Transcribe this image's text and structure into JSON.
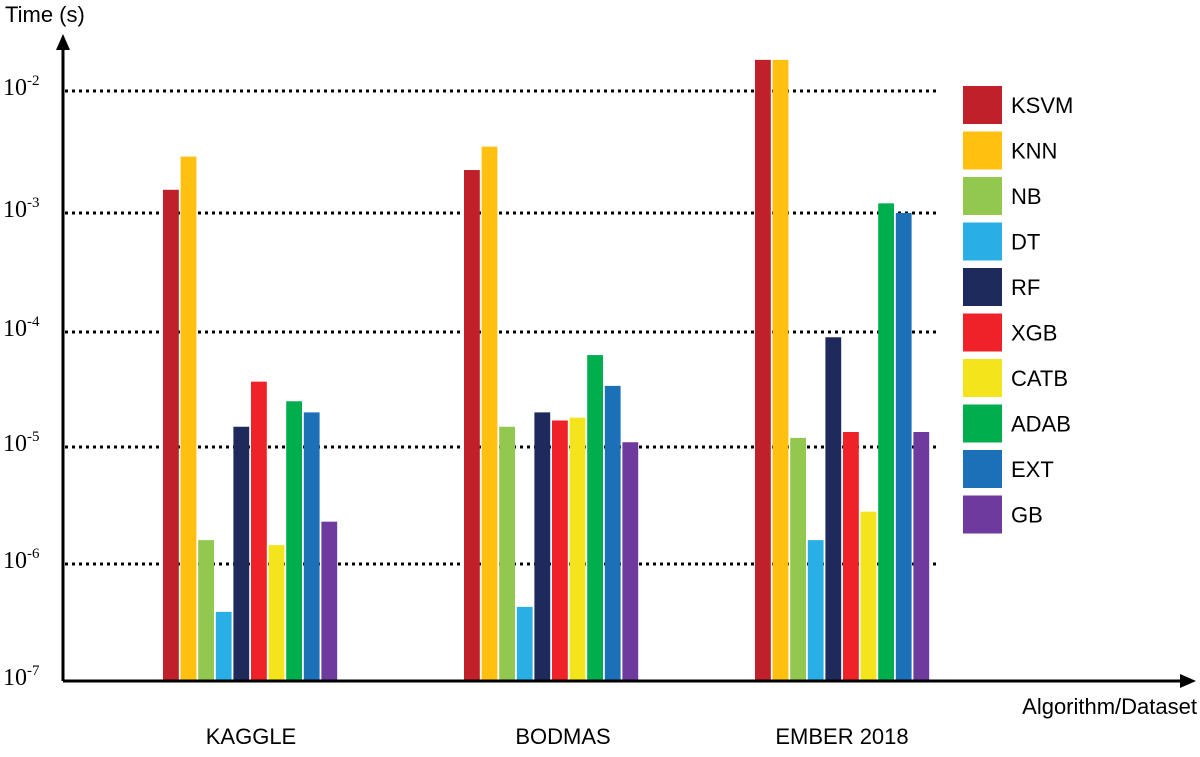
{
  "chart_data": {
    "type": "bar",
    "ylabel": "Time (s)",
    "xlabel": "Algorithm/Dataset",
    "yscale": "log",
    "ylim": [
      1e-07,
      0.02
    ],
    "grid": "dotted horizontal at decades",
    "legend_position": "right",
    "y_ticks": [
      {
        "value": 1e-07,
        "base": "10",
        "exp": "-7"
      },
      {
        "value": 1e-06,
        "base": "10",
        "exp": "-6"
      },
      {
        "value": 1e-05,
        "base": "10",
        "exp": "-5"
      },
      {
        "value": 0.0001,
        "base": "10",
        "exp": "-4"
      },
      {
        "value": 0.001,
        "base": "10",
        "exp": "-3"
      },
      {
        "value": 0.01,
        "base": "10",
        "exp": "-2"
      }
    ],
    "categories": [
      "KAGGLE",
      "BODMAS",
      "EMBER 2018"
    ],
    "series": [
      {
        "name": "KSVM",
        "color": "#C0202A",
        "values": [
          0.00155,
          0.00225,
          0.018
        ]
      },
      {
        "name": "KNN",
        "color": "#FFC010",
        "values": [
          0.0029,
          0.0035,
          0.018
        ]
      },
      {
        "name": "NB",
        "color": "#92C850",
        "values": [
          1.6e-06,
          1.5e-05,
          1.2e-05
        ]
      },
      {
        "name": "DT",
        "color": "#2AAEE6",
        "values": [
          3.9e-07,
          4.3e-07,
          1.6e-06
        ]
      },
      {
        "name": "RF",
        "color": "#1F2A5C",
        "values": [
          1.5e-05,
          2e-05,
          9e-05
        ]
      },
      {
        "name": "XGB",
        "color": "#EE2228",
        "values": [
          3.7e-05,
          1.7e-05,
          1.35e-05
        ]
      },
      {
        "name": "CATB",
        "color": "#F4E41C",
        "values": [
          1.45e-06,
          1.8e-05,
          2.8e-06
        ]
      },
      {
        "name": "ADAB",
        "color": "#00AE4E",
        "values": [
          2.5e-05,
          6.3e-05,
          0.0012
        ]
      },
      {
        "name": "EXT",
        "color": "#1C70B8",
        "values": [
          2e-05,
          3.4e-05,
          0.001
        ]
      },
      {
        "name": "GB",
        "color": "#6F3A9E",
        "values": [
          2.3e-06,
          1.1e-05,
          1.35e-05
        ]
      }
    ]
  }
}
